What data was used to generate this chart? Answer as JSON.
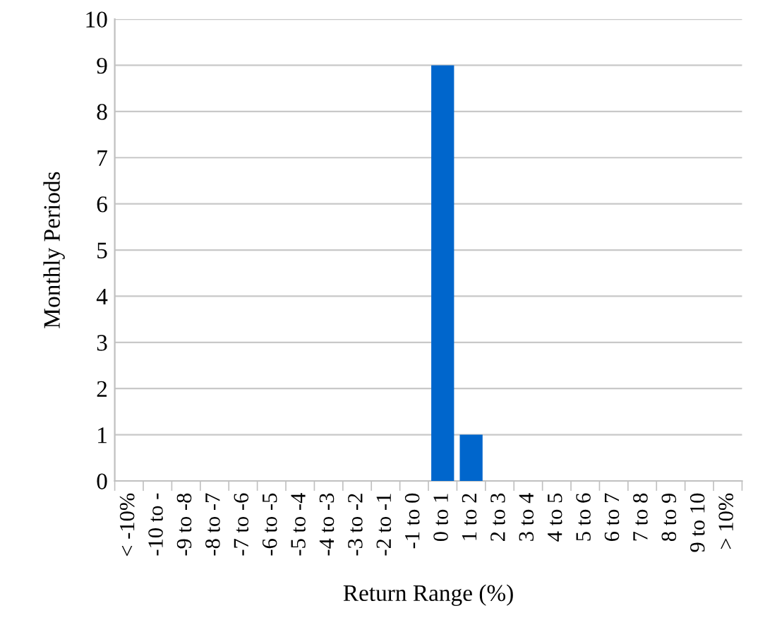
{
  "chart_data": {
    "type": "bar",
    "xlabel": "Return Range (%)",
    "ylabel": "Monthly Periods",
    "categories": [
      "< -10%",
      "-10 to -",
      "-9 to -8",
      "-8 to -7",
      "-7 to -6",
      "-6 to -5",
      "-5 to -4",
      "-4 to -3",
      "-3 to -2",
      "-2 to -1",
      "-1 to 0",
      "0 to 1",
      "1 to 2",
      "2 to 3",
      "3 to 4",
      "4 to 5",
      "5 to 6",
      "6 to 7",
      "7 to 8",
      "8 to 9",
      "9 to 10",
      "> 10%"
    ],
    "values": [
      0,
      0,
      0,
      0,
      0,
      0,
      0,
      0,
      0,
      0,
      0,
      9,
      1,
      0,
      0,
      0,
      0,
      0,
      0,
      0,
      0,
      0
    ],
    "color": "#0066cc",
    "ylim": [
      0,
      10
    ],
    "yticks": [
      0,
      1,
      2,
      3,
      4,
      5,
      6,
      7,
      8,
      9,
      10
    ],
    "grid": "y",
    "legend": false
  }
}
